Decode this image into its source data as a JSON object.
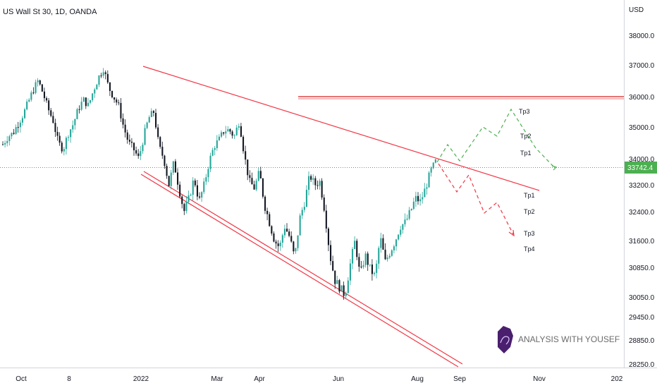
{
  "title": "US Wall St 30, 1D, OANDA",
  "currency": "USD",
  "chart_data": {
    "type": "candlestick",
    "title": "US Wall St 30, 1D, OANDA",
    "ylabel": "USD",
    "ylim": [
      28250,
      38750
    ],
    "y_ticks": [
      "38000.0",
      "37000.0",
      "36000.0",
      "35000.0",
      "34000.0",
      "33200.0",
      "32400.0",
      "31600.0",
      "30850.0",
      "30050.0",
      "29450.0",
      "28850.0",
      "28250.0"
    ],
    "x_ticks": [
      "Oct",
      "8",
      "2022",
      "Mar",
      "Apr",
      "Jun",
      "Aug",
      "Sep",
      "Nov",
      "202"
    ],
    "current_price": "33742.4",
    "grid": false,
    "colors": {
      "up": "#26a69a",
      "down": "#131722",
      "trend": "#f23645",
      "horizontal": "#e57373",
      "projection_up": "#4caf50",
      "projection_down": "#f23645",
      "price_line": "#4caf50"
    },
    "price_path": [
      34450,
      34700,
      34800,
      35100,
      35400,
      35800,
      36200,
      36500,
      36100,
      35600,
      35200,
      34500,
      34300,
      34800,
      35100,
      35600,
      35900,
      35700,
      36200,
      36600,
      36900,
      36300,
      36000,
      35700,
      35000,
      34500,
      34300,
      34000,
      34700,
      35300,
      35500,
      34400,
      34000,
      33200,
      33900,
      33100,
      32400,
      32800,
      33400,
      32700,
      33200,
      33900,
      34400,
      34600,
      34900,
      34900,
      34700,
      35200,
      34100,
      33300,
      33100,
      33600,
      32600,
      32100,
      31600,
      31400,
      32000,
      31700,
      31100,
      32200,
      32700,
      33500,
      33200,
      33300,
      32400,
      31200,
      30500,
      30300,
      30100,
      30900,
      31600,
      30600,
      31200,
      30800,
      30600,
      31700,
      31000,
      31300,
      31600,
      32000,
      32100,
      32400,
      32800,
      32700,
      33100,
      33600,
      33900
    ],
    "target_labels": {
      "bull": [
        "Tp3",
        "Tp2",
        "Tp1"
      ],
      "bear": [
        "Tp1",
        "Tp2",
        "Tp3",
        "Tp4"
      ]
    }
  },
  "watermark": {
    "brand_text": "ANALYSIS WITH YOUSEF",
    "icon": "horse-shield-logo"
  }
}
